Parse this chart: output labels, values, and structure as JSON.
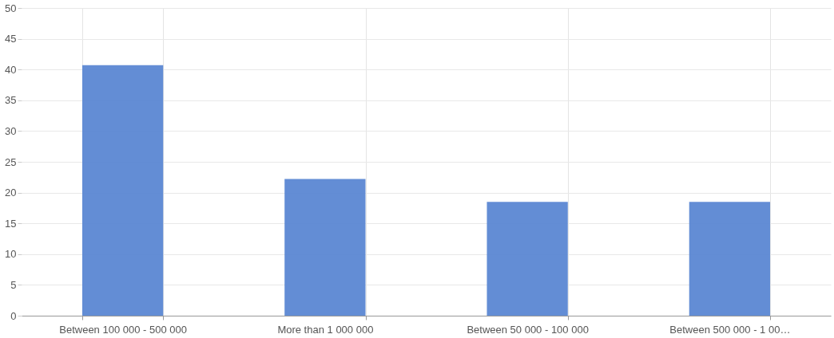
{
  "chart_data": {
    "type": "bar",
    "categories": [
      "Between 100 000 - 500 000",
      "More than 1 000 000",
      "Between 50 000 - 100 000",
      "Between 500 000 - 1 00…"
    ],
    "values": [
      40.7,
      22.2,
      18.5,
      18.5
    ],
    "color": "#5b87d3",
    "ylim": [
      0,
      50
    ],
    "yticks": [
      0,
      5,
      10,
      15,
      20,
      25,
      30,
      35,
      40,
      45,
      50
    ],
    "grid": true
  }
}
